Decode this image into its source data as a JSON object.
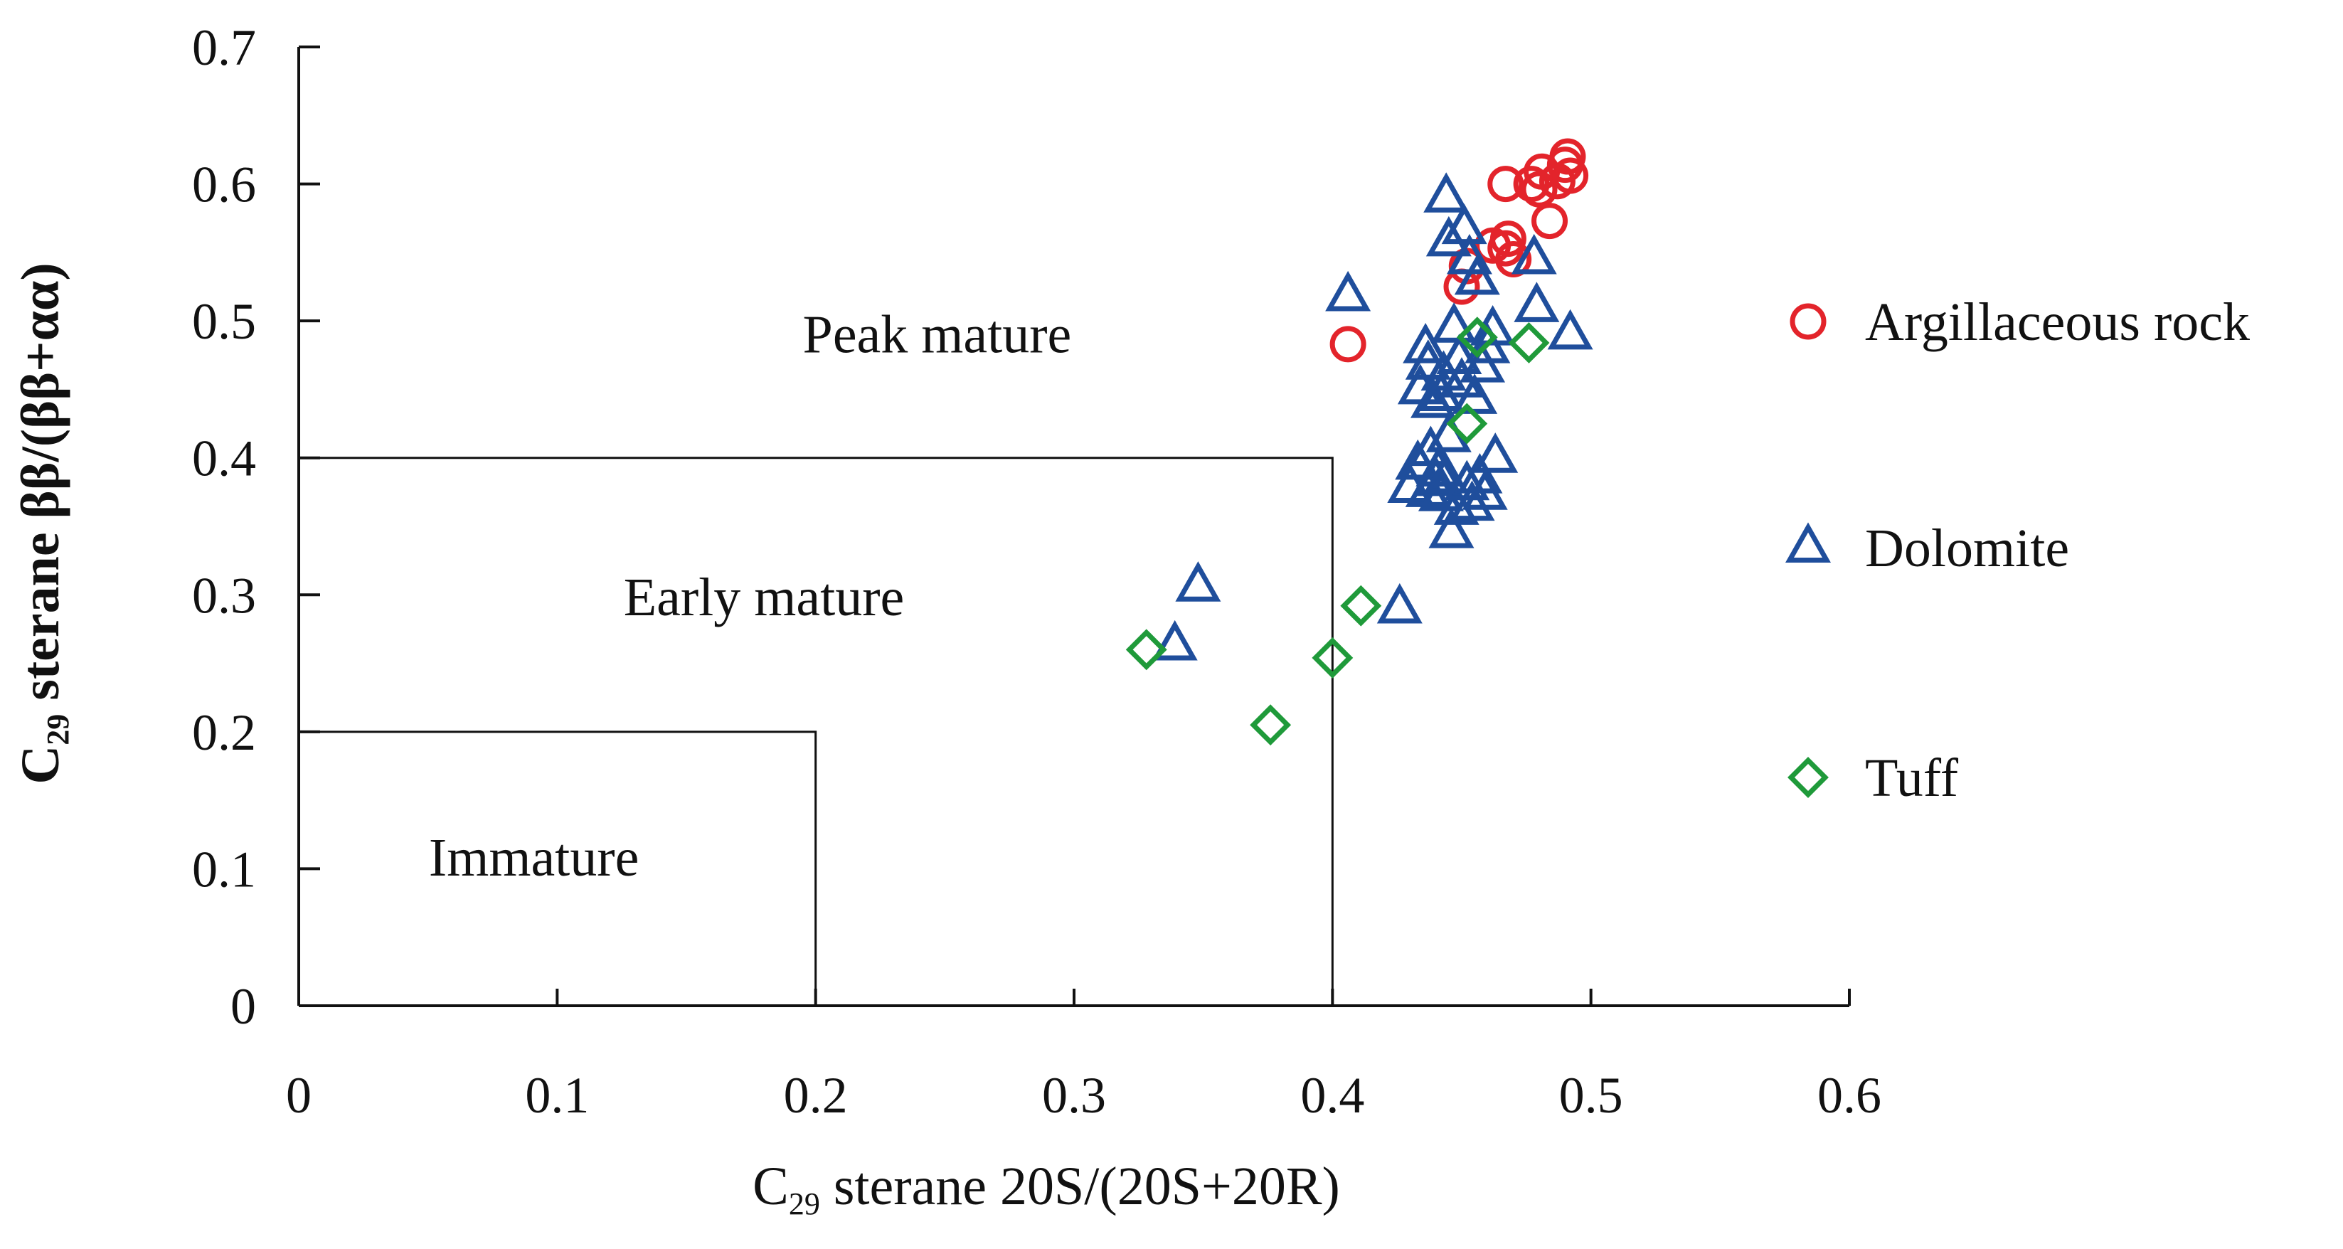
{
  "chart_data": {
    "type": "scatter",
    "title": "",
    "xlabel": {
      "prefix": "C",
      "sub": "29",
      "rest": " sterane 20S/(20S+20R)"
    },
    "ylabel": {
      "prefix": "C",
      "sub": "29",
      "rest": "  sterane  ββ/(ββ+αα)"
    },
    "xlim": [
      0,
      0.6
    ],
    "ylim": [
      0,
      0.7
    ],
    "xticks": [
      0,
      0.1,
      0.2,
      0.3,
      0.4,
      0.5,
      0.6
    ],
    "xtick_labels": [
      "0",
      "0.1",
      "0.2",
      "0.3",
      "0.4",
      "0.5",
      "0.6"
    ],
    "yticks": [
      0,
      0.1,
      0.2,
      0.3,
      0.4,
      0.5,
      0.6,
      0.7
    ],
    "ytick_labels": [
      "0",
      "0.1",
      "0.2",
      "0.3",
      "0.4",
      "0.5",
      "0.6",
      "0.7"
    ],
    "grid": false,
    "regions": [
      {
        "name": "Immature",
        "x_max": 0.2,
        "y_max": 0.2,
        "label_at": [
          0.091,
          0.095
        ]
      },
      {
        "name": "Early mature",
        "x_max": 0.4,
        "y_max": 0.4,
        "label_at": [
          0.18,
          0.285
        ]
      },
      {
        "name": "Peak mature",
        "x_max": null,
        "y_max": null,
        "label_at": [
          0.247,
          0.477
        ]
      }
    ],
    "legend_position": "right",
    "series": [
      {
        "name": "Argillaceous rock",
        "marker": "circle",
        "color": "#e3242b",
        "points": [
          [
            0.406,
            0.483
          ],
          [
            0.45,
            0.525
          ],
          [
            0.452,
            0.54
          ],
          [
            0.462,
            0.555
          ],
          [
            0.467,
            0.553
          ],
          [
            0.468,
            0.56
          ],
          [
            0.47,
            0.545
          ],
          [
            0.467,
            0.6
          ],
          [
            0.477,
            0.6
          ],
          [
            0.48,
            0.596
          ],
          [
            0.481,
            0.609
          ],
          [
            0.484,
            0.573
          ],
          [
            0.487,
            0.602
          ],
          [
            0.49,
            0.614
          ],
          [
            0.491,
            0.62
          ],
          [
            0.492,
            0.606
          ]
        ]
      },
      {
        "name": "Dolomite",
        "marker": "triangle",
        "color": "#1f4e9c",
        "points": [
          [
            0.339,
            0.263
          ],
          [
            0.348,
            0.306
          ],
          [
            0.406,
            0.518
          ],
          [
            0.426,
            0.29
          ],
          [
            0.43,
            0.378
          ],
          [
            0.433,
            0.395
          ],
          [
            0.434,
            0.45
          ],
          [
            0.436,
            0.48
          ],
          [
            0.437,
            0.375
          ],
          [
            0.438,
            0.405
          ],
          [
            0.439,
            0.44
          ],
          [
            0.44,
            0.383
          ],
          [
            0.441,
            0.39
          ],
          [
            0.442,
            0.372
          ],
          [
            0.443,
            0.46
          ],
          [
            0.444,
            0.385
          ],
          [
            0.444,
            0.59
          ],
          [
            0.445,
            0.415
          ],
          [
            0.445,
            0.558
          ],
          [
            0.446,
            0.345
          ],
          [
            0.447,
            0.495
          ],
          [
            0.448,
            0.362
          ],
          [
            0.449,
            0.472
          ],
          [
            0.45,
            0.455
          ],
          [
            0.451,
            0.567
          ],
          [
            0.452,
            0.38
          ],
          [
            0.453,
            0.545
          ],
          [
            0.454,
            0.365
          ],
          [
            0.455,
            0.443
          ],
          [
            0.456,
            0.53
          ],
          [
            0.457,
            0.385
          ],
          [
            0.458,
            0.466
          ],
          [
            0.459,
            0.373
          ],
          [
            0.46,
            0.48
          ],
          [
            0.462,
            0.493
          ],
          [
            0.463,
            0.4
          ],
          [
            0.478,
            0.545
          ],
          [
            0.479,
            0.51
          ],
          [
            0.492,
            0.49
          ],
          [
            0.437,
            0.468
          ],
          [
            0.442,
            0.445
          ]
        ]
      },
      {
        "name": "Tuff",
        "marker": "diamond",
        "color": "#1f9a3a",
        "points": [
          [
            0.328,
            0.26
          ],
          [
            0.376,
            0.205
          ],
          [
            0.4,
            0.254
          ],
          [
            0.411,
            0.292
          ],
          [
            0.452,
            0.425
          ],
          [
            0.456,
            0.488
          ],
          [
            0.476,
            0.484
          ]
        ]
      }
    ]
  }
}
